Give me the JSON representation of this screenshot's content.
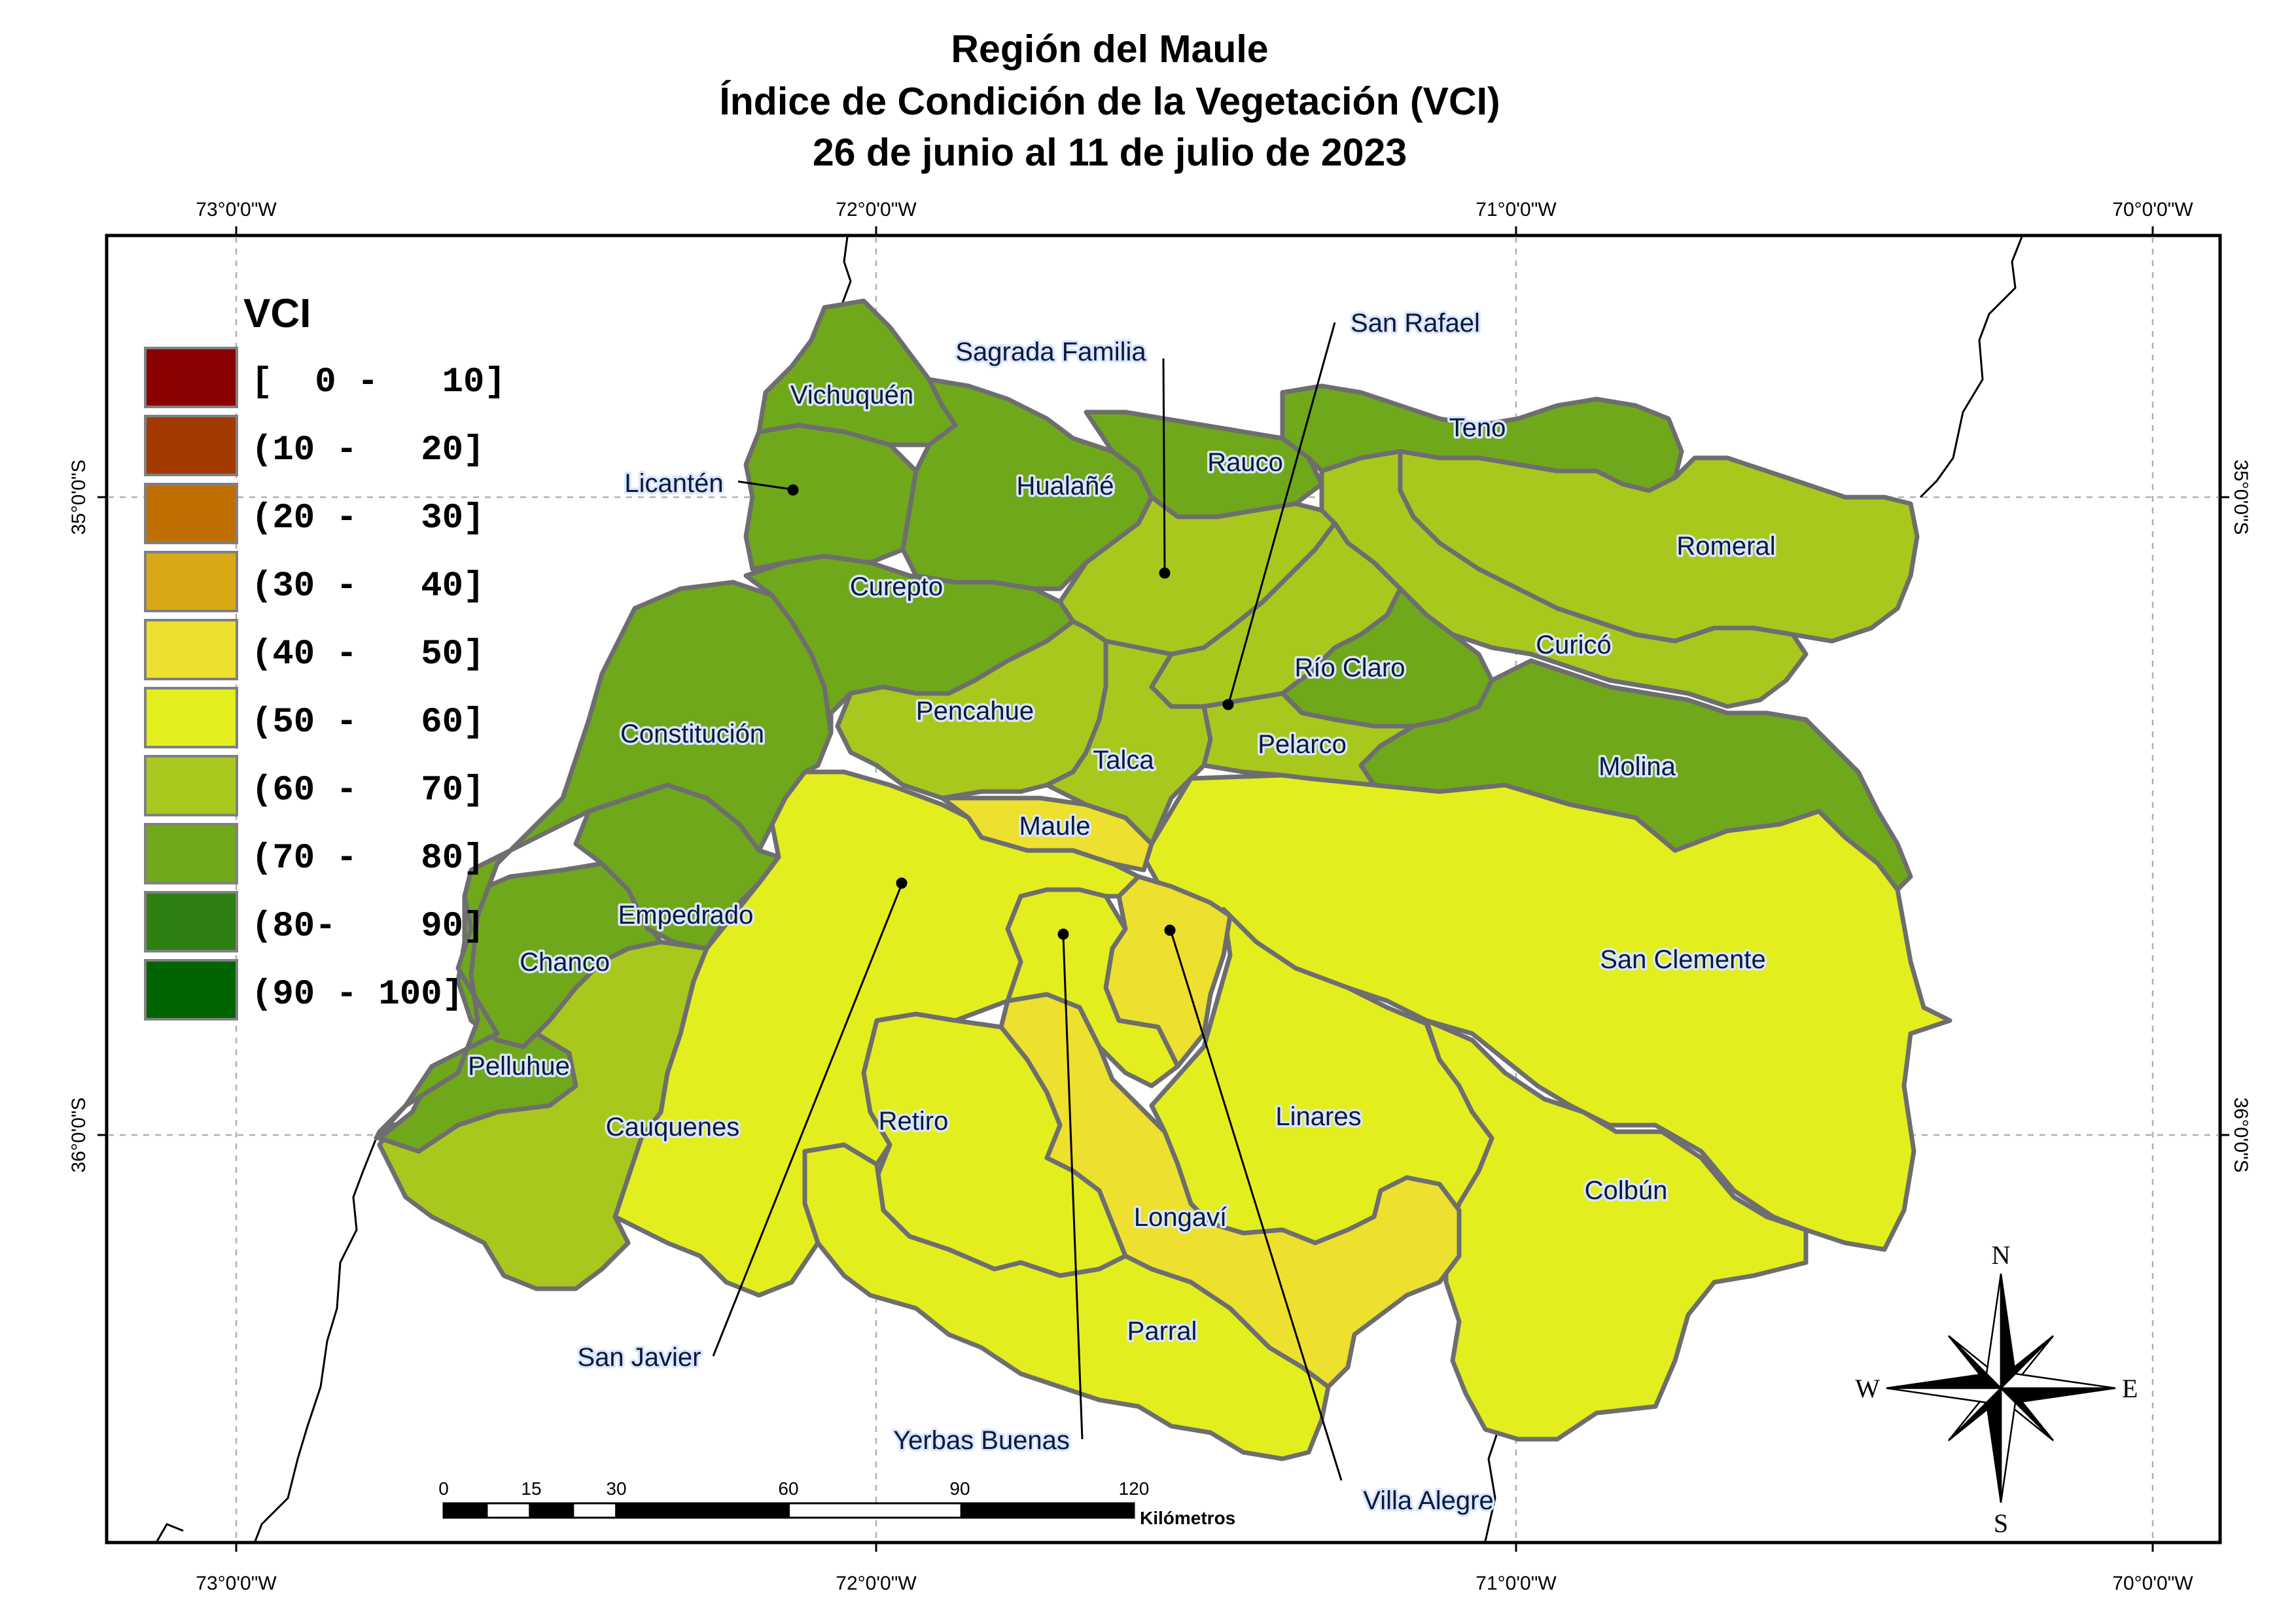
{
  "title": {
    "line1": "Región del Maule",
    "line2": "Índice de Condición de la Vegetación (VCI)",
    "line3": "26 de junio al 11 de julio de 2023"
  },
  "graticule": {
    "longitudes": [
      "73°0'0\"W",
      "72°0'0\"W",
      "71°0'0\"W",
      "70°0'0\"W"
    ],
    "latitudes": [
      "35°0'0\"S",
      "36°0'0\"S"
    ]
  },
  "legend": {
    "title": "VCI",
    "classes": [
      {
        "label": "[  0 -   10]",
        "color": "#8b0000"
      },
      {
        "label": "(10 -   20]",
        "color": "#a33a00"
      },
      {
        "label": "(20 -   30]",
        "color": "#c07000"
      },
      {
        "label": "(30 -   40]",
        "color": "#d9a816"
      },
      {
        "label": "(40 -   50]",
        "color": "#ede02e"
      },
      {
        "label": "(50 -   60]",
        "color": "#e3ee1e"
      },
      {
        "label": "(60 -   70]",
        "color": "#a8c81e"
      },
      {
        "label": "(70 -   80]",
        "color": "#6fa81a"
      },
      {
        "label": "(80-    90]",
        "color": "#2f8012"
      },
      {
        "label": "(90 - 100]",
        "color": "#006400"
      }
    ]
  },
  "comunas": [
    {
      "name": "Vichuquén",
      "vci_class": "(70 -   80]"
    },
    {
      "name": "Licantén",
      "vci_class": "(70 -   80]"
    },
    {
      "name": "Hualañé",
      "vci_class": "(70 -   80]"
    },
    {
      "name": "Sagrada Familia",
      "vci_class": "(60 -   70]"
    },
    {
      "name": "Rauco",
      "vci_class": "(70 -   80]"
    },
    {
      "name": "Teno",
      "vci_class": "(70 -   80]"
    },
    {
      "name": "Romeral",
      "vci_class": "(60 -   70]"
    },
    {
      "name": "Curicó",
      "vci_class": "(60 -   70]"
    },
    {
      "name": "Curepto",
      "vci_class": "(70 -   80]"
    },
    {
      "name": "Constitución",
      "vci_class": "(70 -   80]"
    },
    {
      "name": "Pencahue",
      "vci_class": "(60 -   70]"
    },
    {
      "name": "San Rafael",
      "vci_class": "(60 -   70]"
    },
    {
      "name": "Río Claro",
      "vci_class": "(70 -   80]"
    },
    {
      "name": "Molina",
      "vci_class": "(70 -   80]"
    },
    {
      "name": "Talca",
      "vci_class": "(60 -   70]"
    },
    {
      "name": "Pelarco",
      "vci_class": "(60 -   70]"
    },
    {
      "name": "Empedrado",
      "vci_class": "(70 -   80]"
    },
    {
      "name": "Chanco",
      "vci_class": "(70 -   80]"
    },
    {
      "name": "Pelluhue",
      "vci_class": "(70 -   80]"
    },
    {
      "name": "Cauquenes",
      "vci_class": "(60 -   70]"
    },
    {
      "name": "Maule",
      "vci_class": "(40 -   50]"
    },
    {
      "name": "San Javier",
      "vci_class": "(50 -   60]"
    },
    {
      "name": "San Clemente",
      "vci_class": "(50 -   60]"
    },
    {
      "name": "Yerbas Buenas",
      "vci_class": "(50 -   60]"
    },
    {
      "name": "Villa Alegre",
      "vci_class": "(40 -   50]"
    },
    {
      "name": "Linares",
      "vci_class": "(50 -   60]"
    },
    {
      "name": "Retiro",
      "vci_class": "(50 -   60]"
    },
    {
      "name": "Longaví",
      "vci_class": "(40 -   50]"
    },
    {
      "name": "Colbún",
      "vci_class": "(50 -   60]"
    },
    {
      "name": "Parral",
      "vci_class": "(50 -   60]"
    }
  ],
  "scale_bar": {
    "ticks": [
      "0",
      "15",
      "30",
      "60",
      "90",
      "120"
    ],
    "unit": "Kilómetros"
  },
  "north_arrow": {
    "n": "N",
    "s": "S",
    "e": "E",
    "w": "W"
  }
}
